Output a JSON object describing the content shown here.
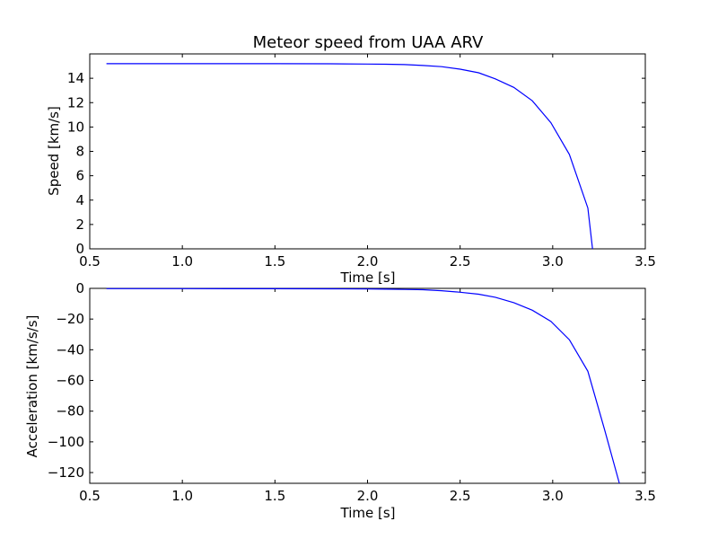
{
  "chart_data": [
    {
      "type": "line",
      "title": "Meteor speed from  UAA ARV",
      "xlabel": "Time [s]",
      "ylabel": "Speed [km/s]",
      "xlim": [
        0.5,
        3.5
      ],
      "ylim": [
        0,
        16
      ],
      "xticks": [
        0.5,
        1.0,
        1.5,
        2.0,
        2.5,
        3.0,
        3.5
      ],
      "xtick_labels": [
        "0.5",
        "1.0",
        "1.5",
        "2.0",
        "2.5",
        "3.0",
        "3.5"
      ],
      "yticks": [
        0,
        2,
        4,
        6,
        8,
        10,
        12,
        14
      ],
      "ytick_labels": [
        "0",
        "2",
        "4",
        "6",
        "8",
        "10",
        "12",
        "14"
      ],
      "grid": false,
      "color": "#0000ff",
      "series": [
        {
          "x": [
            0.59,
            1.0,
            1.5,
            1.8,
            2.0,
            2.1,
            2.2,
            2.3,
            2.4,
            2.5,
            2.6,
            2.69,
            2.79,
            2.89,
            2.99,
            3.09,
            3.19,
            3.215
          ],
          "y": [
            15.2,
            15.2,
            15.2,
            15.19,
            15.17,
            15.15,
            15.12,
            15.05,
            14.95,
            14.75,
            14.45,
            13.95,
            13.25,
            12.15,
            10.35,
            7.75,
            3.35,
            0.0
          ]
        }
      ]
    },
    {
      "type": "line",
      "title": "",
      "xlabel": "Time [s]",
      "ylabel": "Acceleration [km/s/s]",
      "xlim": [
        0.5,
        3.5
      ],
      "ylim": [
        -127,
        0
      ],
      "xticks": [
        0.5,
        1.0,
        1.5,
        2.0,
        2.5,
        3.0,
        3.5
      ],
      "xtick_labels": [
        "0.5",
        "1.0",
        "1.5",
        "2.0",
        "2.5",
        "3.0",
        "3.5"
      ],
      "yticks": [
        0,
        -20,
        -40,
        -60,
        -80,
        -100,
        -120
      ],
      "ytick_labels": [
        "0",
        "−20",
        "−40",
        "−60",
        "−80",
        "−100",
        "−120"
      ],
      "grid": false,
      "color": "#0000ff",
      "series": [
        {
          "x": [
            0.59,
            1.0,
            1.5,
            1.8,
            2.0,
            2.1,
            2.2,
            2.3,
            2.4,
            2.5,
            2.6,
            2.69,
            2.79,
            2.89,
            2.99,
            3.09,
            3.19,
            3.28,
            3.36
          ],
          "y": [
            -0.2,
            -0.2,
            -0.25,
            -0.3,
            -0.4,
            -0.5,
            -0.7,
            -0.9,
            -1.5,
            -2.5,
            -3.8,
            -5.8,
            -9.3,
            -14.2,
            -21.5,
            -33.5,
            -54.0,
            -92.0,
            -127.0
          ]
        }
      ]
    }
  ]
}
